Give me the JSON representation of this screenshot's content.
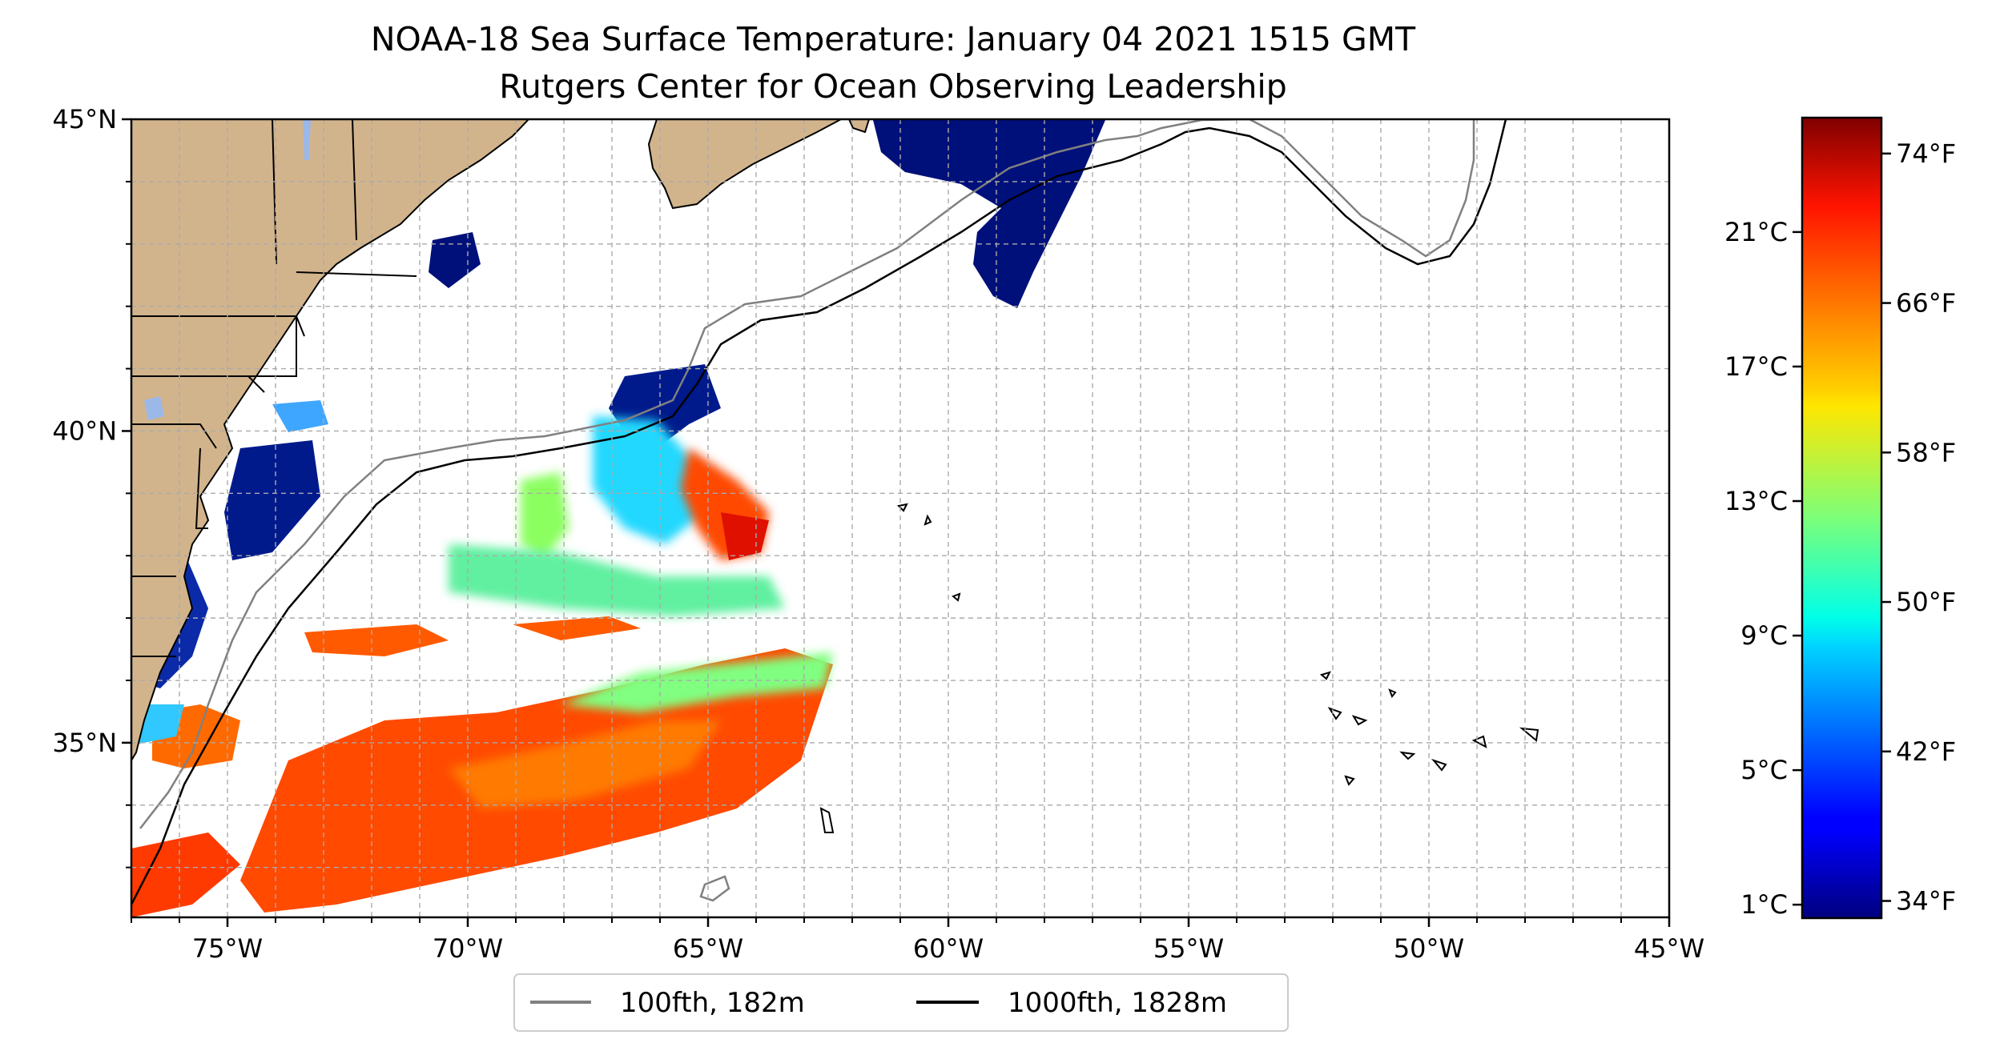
{
  "title": "NOAA-18 Sea Surface Temperature: January 04 2021 1515 GMT",
  "subtitle": "Rutgers Center for Ocean Observing Leadership",
  "map": {
    "lon_range": [
      -77,
      -45
    ],
    "lat_range": [
      32.2,
      45
    ],
    "lon_ticks": [
      {
        "value": -75,
        "label": "75°W"
      },
      {
        "value": -70,
        "label": "70°W"
      },
      {
        "value": -65,
        "label": "65°W"
      },
      {
        "value": -60,
        "label": "60°W"
      },
      {
        "value": -55,
        "label": "55°W"
      },
      {
        "value": -50,
        "label": "50°W"
      },
      {
        "value": -45,
        "label": "45°W"
      }
    ],
    "lat_ticks": [
      {
        "value": 45,
        "label": "45°N"
      },
      {
        "value": 40,
        "label": "40°N"
      },
      {
        "value": 35,
        "label": "35°N"
      }
    ],
    "grid": "dashed, every 1 degree",
    "land_color": "#d2b48c",
    "lake_color": "#9ab8e8",
    "isobath_100_color": "#808080",
    "isobath_1000_color": "#000000"
  },
  "legend": {
    "placement": "bottom-center, below map",
    "entries": [
      {
        "label": "100fth, 182m",
        "color": "#808080"
      },
      {
        "label": "1000fth, 1828m",
        "color": "#000000"
      }
    ]
  },
  "colorbar": {
    "colormap": "jet",
    "range_c": [
      0.6,
      24.4
    ],
    "celsius_ticks": [
      {
        "value": 1,
        "label": "1°C"
      },
      {
        "value": 5,
        "label": "5°C"
      },
      {
        "value": 9,
        "label": "9°C"
      },
      {
        "value": 13,
        "label": "13°C"
      },
      {
        "value": 17,
        "label": "17°C"
      },
      {
        "value": 21,
        "label": "21°C"
      }
    ],
    "fahrenheit_ticks": [
      {
        "value": 34,
        "label": "34°F"
      },
      {
        "value": 42,
        "label": "42°F"
      },
      {
        "value": 50,
        "label": "50°F"
      },
      {
        "value": 58,
        "label": "58°F"
      },
      {
        "value": 66,
        "label": "66°F"
      },
      {
        "value": 74,
        "label": "74°F"
      }
    ]
  }
}
